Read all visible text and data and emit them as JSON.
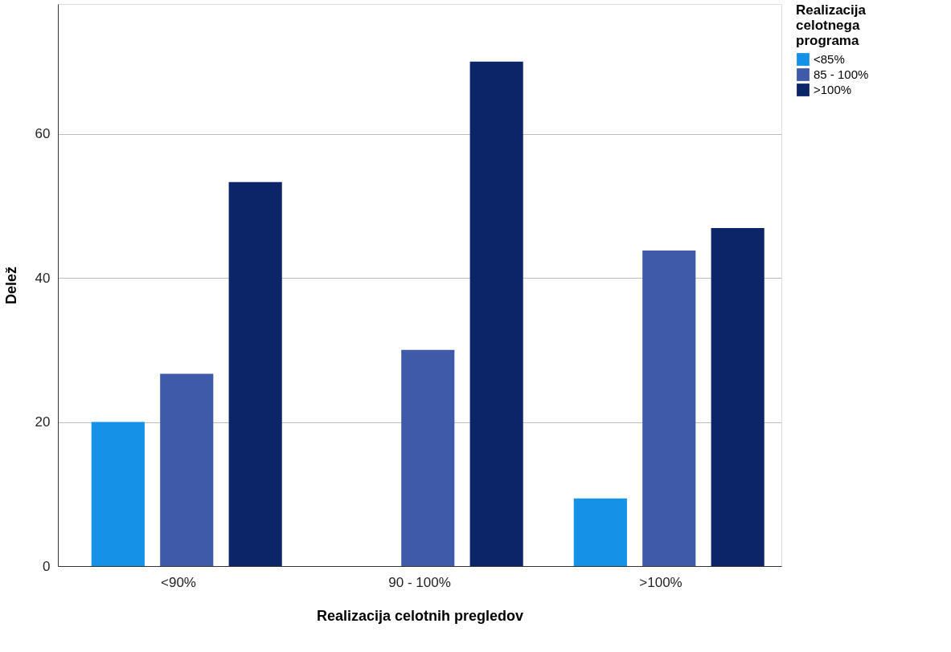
{
  "chart_data": {
    "type": "bar",
    "xlabel": "Realizacija celotnih pregledov",
    "ylabel": "Delež",
    "legend_title": "Realizacija celotnega programa",
    "categories": [
      "<90%",
      "90 - 100%",
      ">100%"
    ],
    "series": [
      {
        "name": "<85%",
        "color": "#1591e8",
        "values": [
          20.0,
          0,
          9.4
        ]
      },
      {
        "name": "85 - 100%",
        "color": "#3f5aa9",
        "values": [
          26.7,
          30.0,
          43.8
        ]
      },
      {
        "name": ">100%",
        "color": "#0c2468",
        "values": [
          53.3,
          70.0,
          46.9
        ]
      }
    ],
    "ylim": [
      0,
      78
    ],
    "yticks": [
      0,
      20,
      40,
      60
    ],
    "grid": "y",
    "legend": "top right"
  }
}
